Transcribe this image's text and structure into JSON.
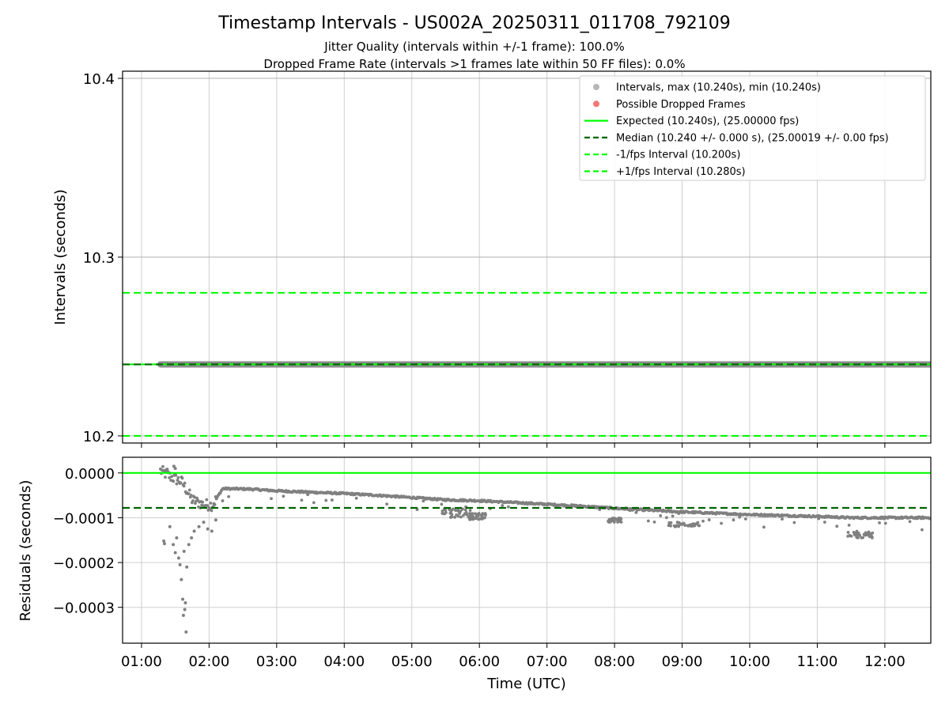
{
  "chart_data": [
    {
      "type": "scatter",
      "panel": "top",
      "title": "Timestamp Intervals - US002A_20250311_011708_792109",
      "subtitles": [
        "Jitter Quality (intervals within +/-1 frame): 100.0%",
        "Dropped Frame Rate (intervals >1 frames late within 50 FF files): 0.0%"
      ],
      "ylabel": "Intervals (seconds)",
      "xlabel": "",
      "xlim_hours": [
        0.72,
        12.68
      ],
      "ylim": [
        10.196,
        10.404
      ],
      "yticks": [
        10.2,
        10.3,
        10.4
      ],
      "ytick_labels": [
        "10.2",
        "10.3",
        "10.4"
      ],
      "grid": true,
      "legend_position": "top-right",
      "legend": [
        {
          "label": "Intervals, max (10.240s), min (10.240s)",
          "kind": "marker",
          "color": "#aaaaaa"
        },
        {
          "label": "Possible Dropped Frames",
          "kind": "marker",
          "color": "#f06060"
        },
        {
          "label": "Expected (10.240s), (25.00000 fps)",
          "kind": "solid",
          "color": "#00ff00"
        },
        {
          "label": "Median (10.240 +/- 0.000 s), (25.00019 +/- 0.00 fps)",
          "kind": "dashed",
          "color": "#006400"
        },
        {
          "label": "-1/fps Interval (10.200s)",
          "kind": "dashed",
          "color": "#00ff00"
        },
        {
          "label": "+1/fps Interval (10.280s)",
          "kind": "dashed",
          "color": "#00ff00"
        }
      ],
      "intervals_series": {
        "x_start_hours": 1.28,
        "x_end_hours": 12.68,
        "y": 10.24,
        "color": "#808080"
      },
      "hlines": [
        {
          "name": "expected",
          "y": 10.24,
          "color": "#00ff00",
          "style": "solid"
        },
        {
          "name": "median",
          "y": 10.24,
          "color": "#006400",
          "style": "dashed"
        },
        {
          "name": "minus_fps",
          "y": 10.2,
          "color": "#00ff00",
          "style": "dashed"
        },
        {
          "name": "plus_fps",
          "y": 10.28,
          "color": "#00ff00",
          "style": "dashed"
        }
      ]
    },
    {
      "type": "scatter",
      "panel": "bottom",
      "xlabel": "Time (UTC)",
      "ylabel": "Residuals (seconds)",
      "xlim_hours": [
        0.72,
        12.68
      ],
      "ylim": [
        -0.00038,
        3.5e-05
      ],
      "yticks": [
        0.0,
        -0.0001,
        -0.0002,
        -0.0003
      ],
      "ytick_labels": [
        "0.0000",
        "−0.0001",
        "−0.0002",
        "−0.0003"
      ],
      "xticks_hours": [
        1,
        2,
        3,
        4,
        5,
        6,
        7,
        8,
        9,
        10,
        11,
        12
      ],
      "xtick_labels": [
        "01:00",
        "02:00",
        "03:00",
        "04:00",
        "05:00",
        "06:00",
        "07:00",
        "08:00",
        "09:00",
        "10:00",
        "11:00",
        "12:00"
      ],
      "grid": true,
      "point_color": "#808080",
      "hlines": [
        {
          "name": "expected",
          "y": 0.0,
          "color": "#00ff00",
          "style": "solid"
        },
        {
          "name": "median",
          "y": -7.8e-05,
          "color": "#006400",
          "style": "dashed"
        }
      ],
      "trend": [
        [
          1.28,
          5e-06
        ],
        [
          1.45,
          -1e-05
        ],
        [
          1.6,
          -2e-05
        ],
        [
          1.75,
          -6e-05
        ],
        [
          1.9,
          -7e-05
        ],
        [
          2.05,
          -7.2e-05
        ],
        [
          2.2,
          -3.5e-05
        ],
        [
          2.6,
          -3.6e-05
        ],
        [
          3.0,
          -4e-05
        ],
        [
          3.5,
          -4.3e-05
        ],
        [
          4.0,
          -4.6e-05
        ],
        [
          4.5,
          -5e-05
        ],
        [
          5.0,
          -5.5e-05
        ],
        [
          5.5,
          -6e-05
        ],
        [
          6.0,
          -6.2e-05
        ],
        [
          6.5,
          -6.6e-05
        ],
        [
          7.0,
          -7e-05
        ],
        [
          7.5,
          -7.4e-05
        ],
        [
          8.0,
          -7.9e-05
        ],
        [
          8.5,
          -8.3e-05
        ],
        [
          9.0,
          -8.7e-05
        ],
        [
          9.5,
          -9e-05
        ],
        [
          10.0,
          -9.3e-05
        ],
        [
          10.5,
          -9.5e-05
        ],
        [
          11.0,
          -9.7e-05
        ],
        [
          11.5,
          -0.0001
        ],
        [
          12.0,
          -0.0001
        ],
        [
          12.68,
          -0.0001
        ]
      ],
      "outliers": [
        [
          1.33,
          -0.000152
        ],
        [
          1.34,
          -0.000158
        ],
        [
          1.42,
          -0.00012
        ],
        [
          1.47,
          -0.00016
        ],
        [
          1.5,
          -0.000178
        ],
        [
          1.52,
          -0.000145
        ],
        [
          1.55,
          -0.00019
        ],
        [
          1.57,
          -0.000205
        ],
        [
          1.59,
          -0.000238
        ],
        [
          1.61,
          -0.000282
        ],
        [
          1.62,
          -0.000318
        ],
        [
          1.64,
          -0.000305
        ],
        [
          1.65,
          -0.00029
        ],
        [
          1.66,
          -0.000355
        ],
        [
          1.63,
          -0.000175
        ],
        [
          1.67,
          -0.00021
        ],
        [
          1.7,
          -0.00016
        ],
        [
          1.74,
          -0.000145
        ],
        [
          1.78,
          -0.00013
        ],
        [
          1.85,
          -0.00012
        ],
        [
          1.92,
          -0.00011
        ],
        [
          1.98,
          -0.000125
        ],
        [
          2.04,
          -0.00013
        ],
        [
          2.1,
          -0.000105
        ],
        [
          1.5,
          1e-05
        ],
        [
          1.48,
          1.5e-05
        ],
        [
          1.38,
          8e-06
        ]
      ],
      "clusters": [
        {
          "x": [
            5.45,
            5.9
          ],
          "y": [
            -8e-05,
            -0.0001
          ]
        },
        {
          "x": [
            5.85,
            6.1
          ],
          "y": [
            -9e-05,
            -0.000105
          ]
        },
        {
          "x": [
            7.9,
            8.1
          ],
          "y": [
            -0.0001,
            -0.00011
          ]
        },
        {
          "x": [
            8.8,
            9.3
          ],
          "y": [
            -0.00011,
            -0.00012
          ]
        },
        {
          "x": [
            11.45,
            11.85
          ],
          "y": [
            -0.00013,
            -0.000145
          ]
        }
      ]
    }
  ]
}
